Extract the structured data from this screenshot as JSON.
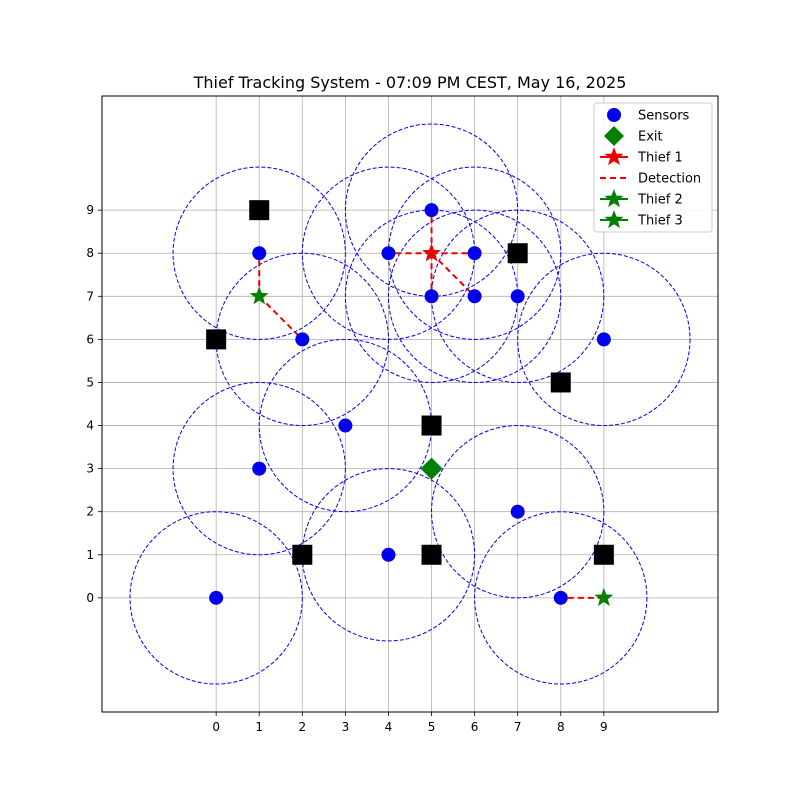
{
  "chart_data": {
    "type": "scatter",
    "title": "Thief Tracking System - 07:09 PM CEST, May 16, 2025",
    "xlabel": "",
    "ylabel": "",
    "xlim": [
      -2.65,
      11.65
    ],
    "ylim": [
      -2.65,
      11.65
    ],
    "xticks": [
      0,
      1,
      2,
      3,
      4,
      5,
      6,
      7,
      8,
      9
    ],
    "yticks": [
      0,
      1,
      2,
      3,
      4,
      5,
      6,
      7,
      8,
      9
    ],
    "grid": true,
    "legend_position": "top-right",
    "sensor_radius": 2,
    "legend": [
      {
        "label": "Sensors",
        "marker": "circle",
        "color": "#0000ee"
      },
      {
        "label": "Exit",
        "marker": "diamond",
        "color": "#008000"
      },
      {
        "label": "Thief 1",
        "marker": "star",
        "color": "#ee0000",
        "line": "solid"
      },
      {
        "label": "Detection",
        "marker": "none",
        "color": "#ee0000",
        "line": "dashed"
      },
      {
        "label": "Thief 2",
        "marker": "star",
        "color": "#008000",
        "line": "solid"
      },
      {
        "label": "Thief 3",
        "marker": "star",
        "color": "#008000",
        "line": "solid"
      }
    ],
    "sensors": [
      {
        "x": 0,
        "y": 0
      },
      {
        "x": 1,
        "y": 3
      },
      {
        "x": 1,
        "y": 8
      },
      {
        "x": 2,
        "y": 6
      },
      {
        "x": 3,
        "y": 4
      },
      {
        "x": 4,
        "y": 1
      },
      {
        "x": 4,
        "y": 8
      },
      {
        "x": 5,
        "y": 7
      },
      {
        "x": 5,
        "y": 9
      },
      {
        "x": 6,
        "y": 7
      },
      {
        "x": 6,
        "y": 8
      },
      {
        "x": 7,
        "y": 2
      },
      {
        "x": 7,
        "y": 7
      },
      {
        "x": 8,
        "y": 0
      },
      {
        "x": 9,
        "y": 6
      }
    ],
    "obstacles": [
      {
        "x": 1,
        "y": 9
      },
      {
        "x": 0,
        "y": 6
      },
      {
        "x": 2,
        "y": 1
      },
      {
        "x": 5,
        "y": 1
      },
      {
        "x": 5,
        "y": 4
      },
      {
        "x": 7,
        "y": 8
      },
      {
        "x": 8,
        "y": 5
      },
      {
        "x": 9,
        "y": 1
      }
    ],
    "exit": {
      "x": 5,
      "y": 3
    },
    "thieves": [
      {
        "name": "Thief 1",
        "x": 5,
        "y": 8,
        "color": "#ee0000",
        "detections": [
          {
            "x": 4,
            "y": 8
          },
          {
            "x": 6,
            "y": 8
          },
          {
            "x": 5,
            "y": 9
          },
          {
            "x": 5,
            "y": 7
          },
          {
            "x": 6,
            "y": 7
          }
        ]
      },
      {
        "name": "Thief 2",
        "x": 1,
        "y": 7,
        "color": "#008000",
        "detections": [
          {
            "x": 1,
            "y": 8
          },
          {
            "x": 2,
            "y": 6
          }
        ]
      },
      {
        "name": "Thief 3",
        "x": 9,
        "y": 0,
        "color": "#008000",
        "detections": [
          {
            "x": 8,
            "y": 0
          }
        ]
      }
    ]
  }
}
